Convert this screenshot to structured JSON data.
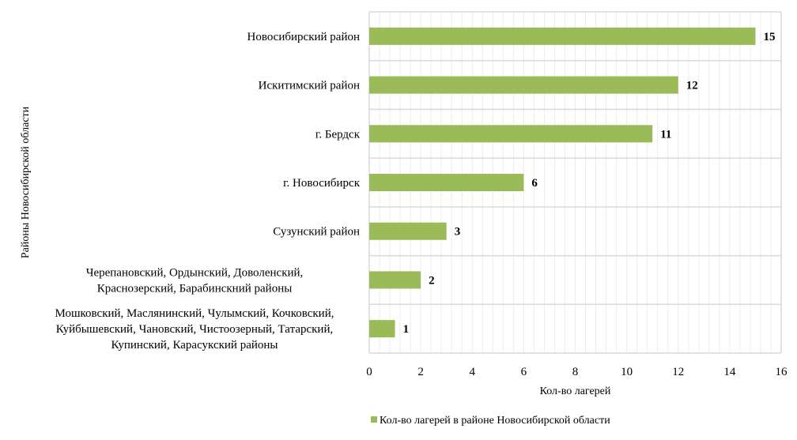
{
  "chart_data": {
    "type": "bar",
    "orientation": "horizontal",
    "categories": [
      [
        "Новосибирский район"
      ],
      [
        "Искитимский район"
      ],
      [
        "г. Бердск"
      ],
      [
        "г. Новосибирск"
      ],
      [
        "Сузунский район"
      ],
      [
        "Черепановский, Ордынский, Доволенский,",
        "Краснозерский, Барабинскний районы"
      ],
      [
        "Мошковский, Маслянинский, Чулымский, Кочковский,",
        "Куйбышевский, Чановский, Чистоозерный, Татарский,",
        "Купинский, Карасукский районы"
      ]
    ],
    "series": [
      {
        "name": "Кол-во лагерей в районе Новосибирской области",
        "values": [
          15,
          12,
          11,
          6,
          3,
          2,
          1
        ],
        "color": "#9bbb59"
      }
    ],
    "xlabel": "Кол-во лагерей",
    "ylabel": "Районы Новосибирской области",
    "xlim": [
      0,
      16
    ],
    "xticks": [
      "0",
      "2",
      "4",
      "6",
      "8",
      "10",
      "12",
      "14",
      "16"
    ],
    "data_labels": [
      "15",
      "12",
      "11",
      "6",
      "3",
      "2",
      "1"
    ],
    "grid": true,
    "legend": "bottom"
  }
}
